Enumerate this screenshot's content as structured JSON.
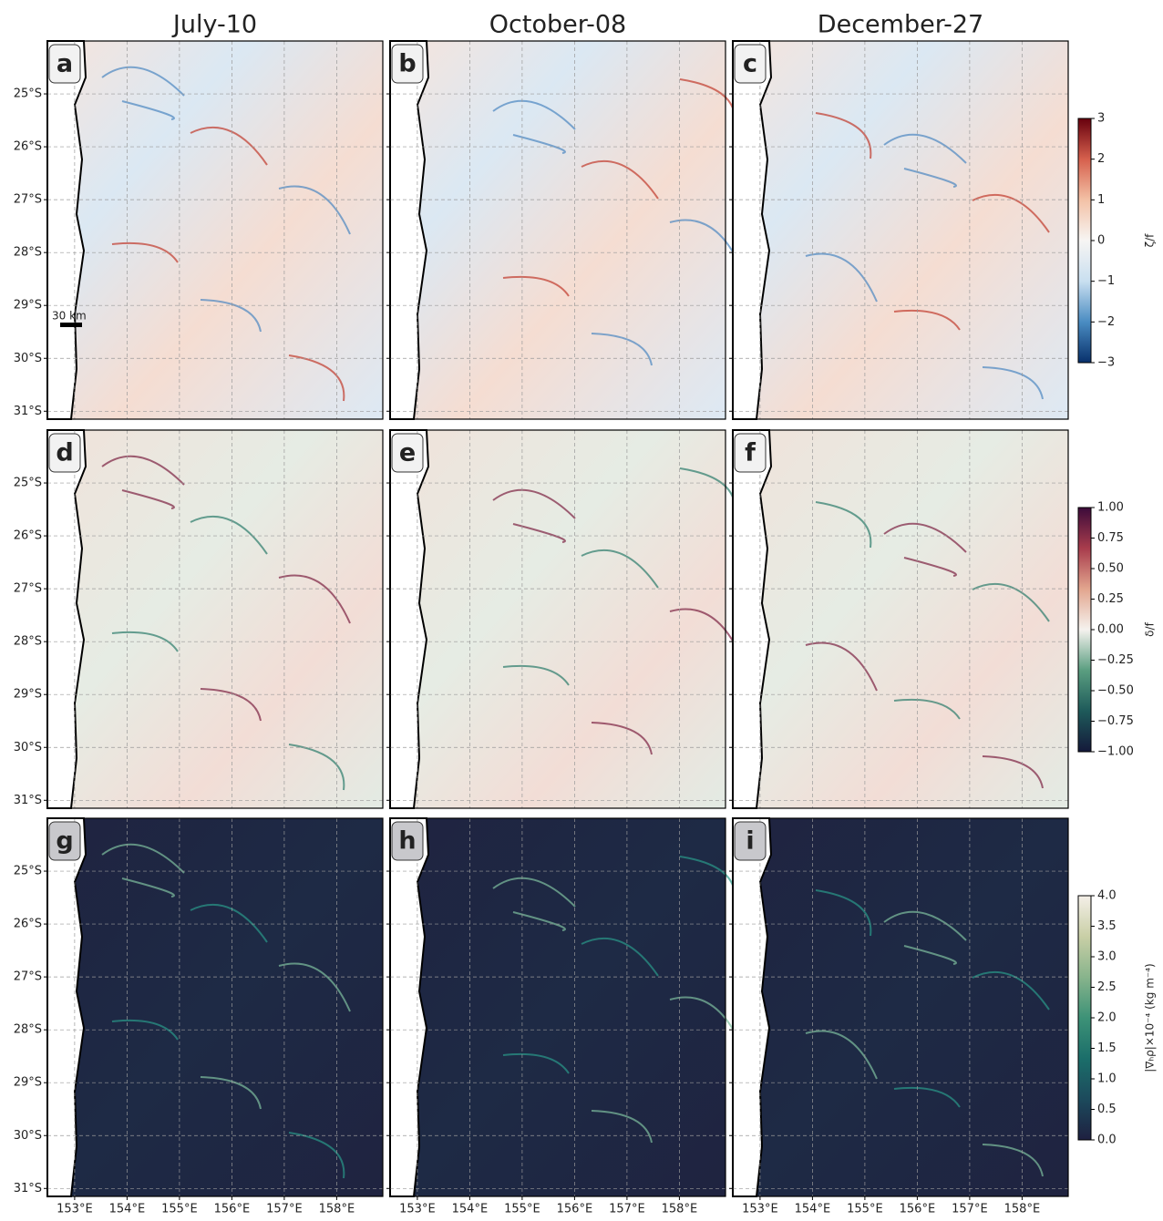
{
  "figure": {
    "columns": [
      "July-10",
      "October-08",
      "December-27"
    ],
    "panel_labels": [
      "a",
      "b",
      "c",
      "d",
      "e",
      "f",
      "g",
      "h",
      "i"
    ],
    "lat_lim": [
      -31.15,
      -24.0
    ],
    "lat_ticks": [
      {
        "value": -25,
        "label": "25°S"
      },
      {
        "value": -26,
        "label": "26°S"
      },
      {
        "value": -27,
        "label": "27°S"
      },
      {
        "value": -28,
        "label": "28°S"
      },
      {
        "value": -29,
        "label": "29°S"
      },
      {
        "value": -30,
        "label": "30°S"
      },
      {
        "value": -31,
        "label": "31°S"
      }
    ],
    "lon_lim": [
      152.48,
      158.88
    ],
    "lon_ticks": [
      {
        "value": 153,
        "label": "153°E"
      },
      {
        "value": 154,
        "label": "154°E"
      },
      {
        "value": 155,
        "label": "155°E"
      },
      {
        "value": 156,
        "label": "156°E"
      },
      {
        "value": 157,
        "label": "157°E"
      },
      {
        "value": 158,
        "label": "158°E"
      }
    ],
    "scale_bar": "30 km",
    "colorbars": [
      {
        "label": "ζ/f",
        "lim": [
          -3,
          3
        ],
        "colors": [
          "#08306b",
          "#4a8cc2",
          "#c9dff0",
          "#f7f5f3",
          "#f3c1a6",
          "#d6604d",
          "#67000d"
        ],
        "ticks": [
          {
            "value": 3,
            "label": "3"
          },
          {
            "value": 2,
            "label": "2"
          },
          {
            "value": 1,
            "label": "1"
          },
          {
            "value": 0,
            "label": "0"
          },
          {
            "value": -1,
            "label": "−1"
          },
          {
            "value": -2,
            "label": "−2"
          },
          {
            "value": -3,
            "label": "−3"
          }
        ]
      },
      {
        "label": "δ/f",
        "lim": [
          -1,
          1
        ],
        "colors": [
          "#14193a",
          "#1e5a5a",
          "#5a9e80",
          "#f5f2ee",
          "#e2a58e",
          "#a83c4c",
          "#3c0b3a"
        ],
        "ticks": [
          {
            "value": 1,
            "label": "1.00"
          },
          {
            "value": 0.75,
            "label": "0.75"
          },
          {
            "value": 0.5,
            "label": "0.50"
          },
          {
            "value": 0.25,
            "label": "0.25"
          },
          {
            "value": 0,
            "label": "0.00"
          },
          {
            "value": -0.25,
            "label": "−0.25"
          },
          {
            "value": -0.5,
            "label": "−0.50"
          },
          {
            "value": -0.75,
            "label": "−0.75"
          },
          {
            "value": -1,
            "label": "−1.00"
          }
        ]
      },
      {
        "label": "|∇ₕρ|×10⁻⁴ (kg m⁻⁴)",
        "lim": [
          0,
          4
        ],
        "colors": [
          "#1e2040",
          "#1c4a5c",
          "#1b6e6a",
          "#3d9277",
          "#88b48c",
          "#c9cfa6",
          "#f4efe8"
        ],
        "ticks": [
          {
            "value": 4,
            "label": "4.0"
          },
          {
            "value": 3.5,
            "label": "3.5"
          },
          {
            "value": 3,
            "label": "3.0"
          },
          {
            "value": 2.5,
            "label": "2.5"
          },
          {
            "value": 2,
            "label": "2.0"
          },
          {
            "value": 1.5,
            "label": "1.5"
          },
          {
            "value": 1,
            "label": "1.0"
          },
          {
            "value": 0.5,
            "label": "0.5"
          },
          {
            "value": 0,
            "label": "0.0"
          }
        ]
      }
    ]
  }
}
